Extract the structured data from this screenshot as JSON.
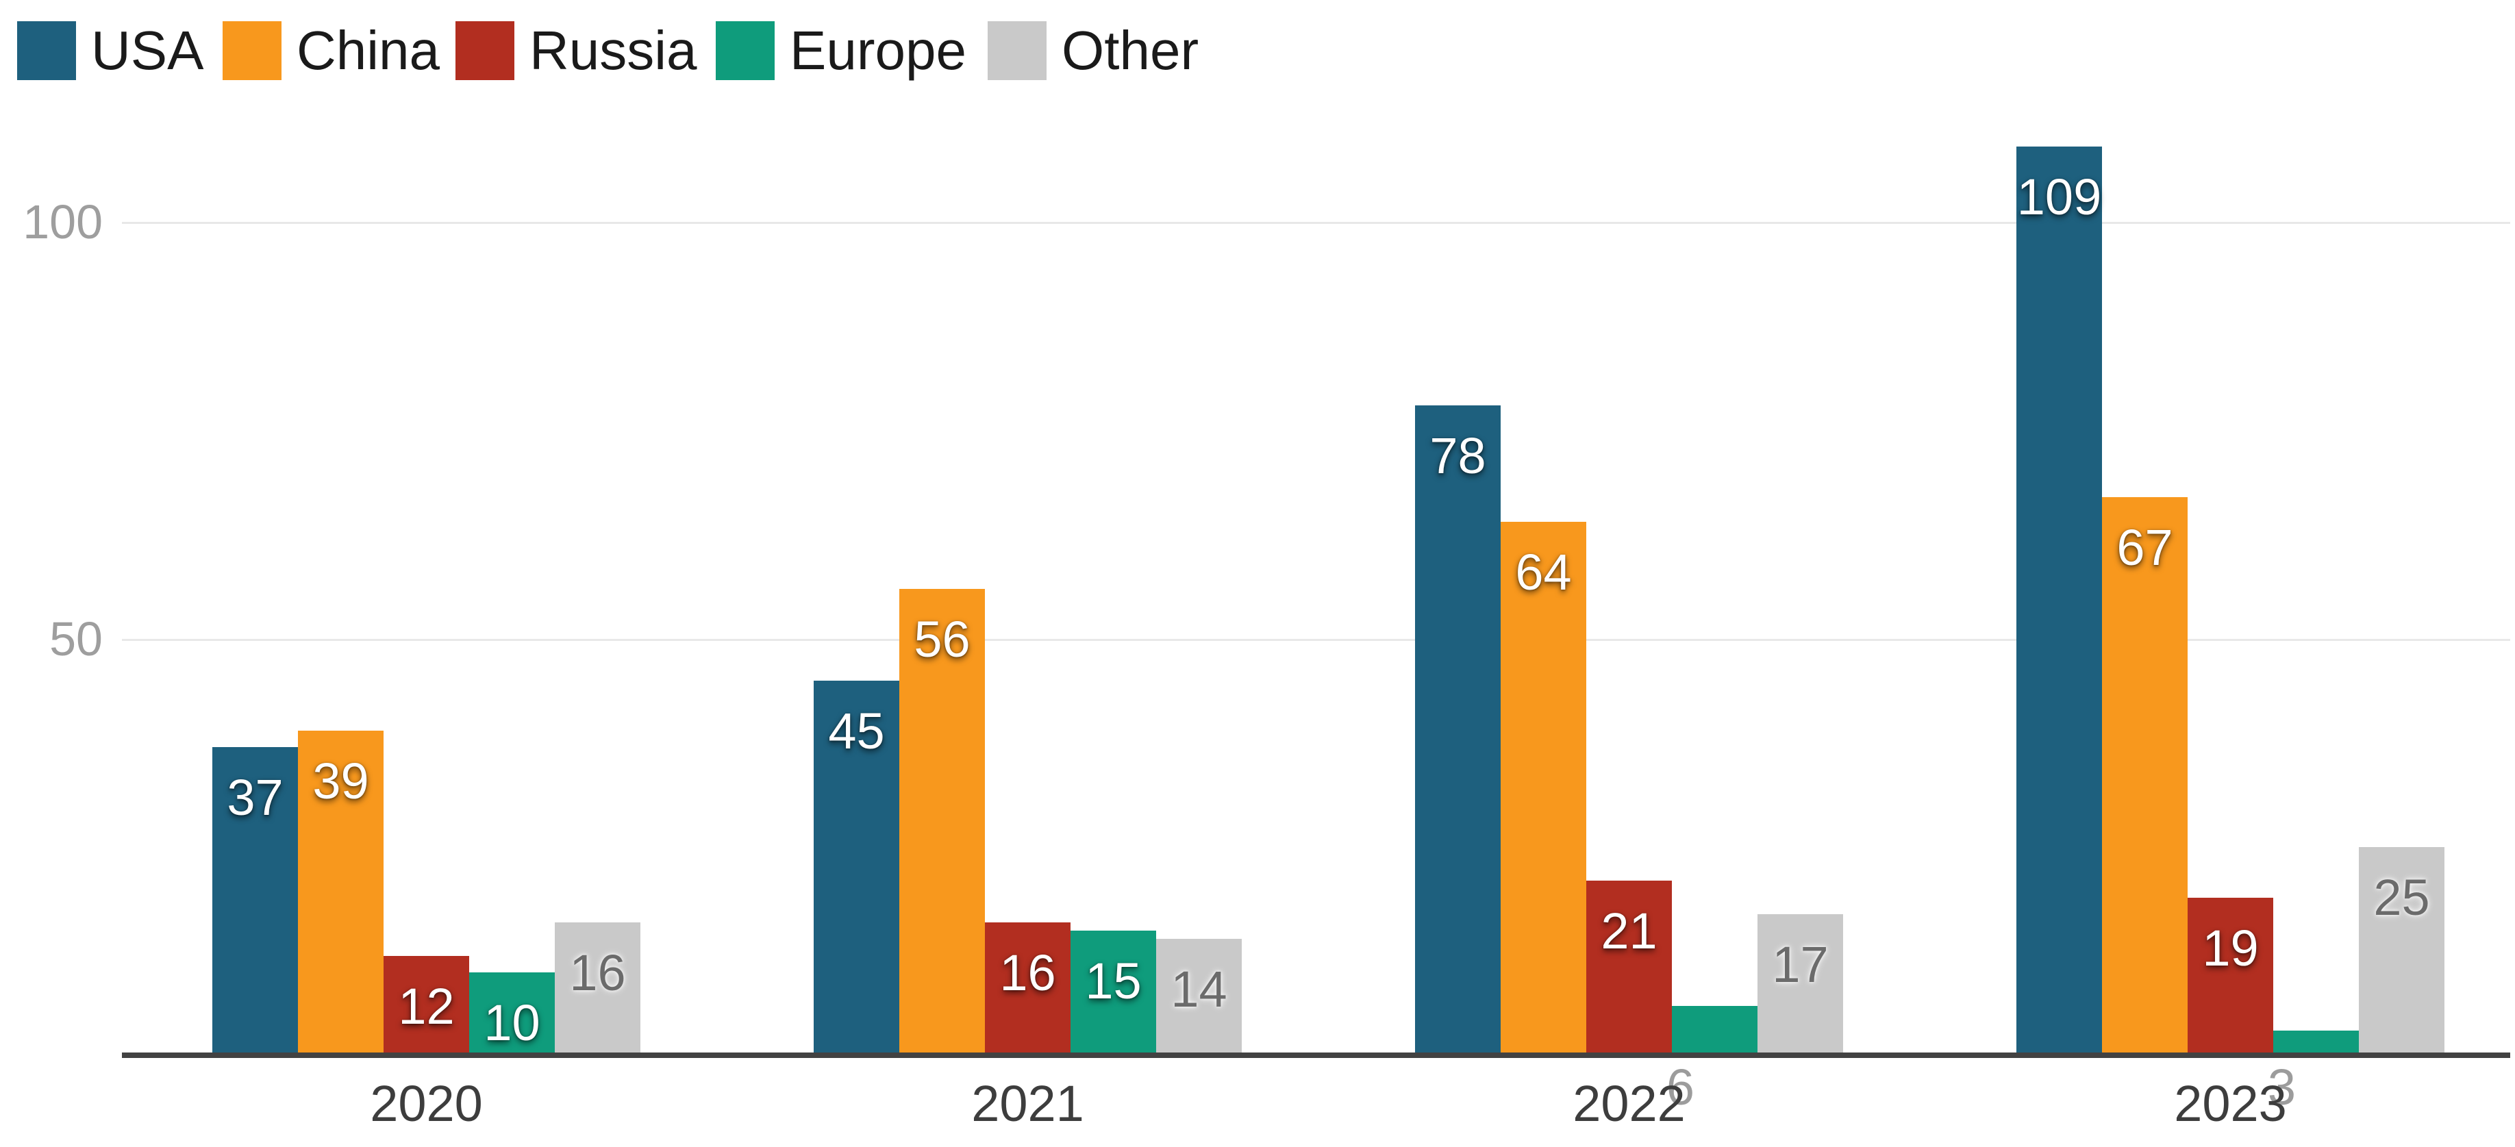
{
  "chart_data": {
    "type": "bar",
    "title": "",
    "categories": [
      "2020",
      "2021",
      "2022",
      "2023"
    ],
    "series": [
      {
        "name": "USA",
        "color": "#1e607e",
        "values": [
          37,
          45,
          78,
          109
        ]
      },
      {
        "name": "China",
        "color": "#f8981d",
        "values": [
          39,
          56,
          64,
          67
        ]
      },
      {
        "name": "Russia",
        "color": "#b22e20",
        "values": [
          12,
          16,
          21,
          19
        ]
      },
      {
        "name": "Europe",
        "color": "#0f9c7c",
        "values": [
          10,
          15,
          6,
          3
        ]
      },
      {
        "name": "Other",
        "color": "#c9c9c9",
        "values": [
          16,
          14,
          17,
          25
        ]
      }
    ],
    "xlabel": "",
    "ylabel": "",
    "ylim": [
      0,
      110
    ],
    "yticks": [
      {
        "value": 50,
        "label": "50"
      },
      {
        "value": 100,
        "label": "100"
      }
    ],
    "grid": true,
    "legend_position": "top-left",
    "value_labels": true
  },
  "colors": {
    "background": "#ffffff",
    "axis": "#424242",
    "gridline": "#e8e8e8",
    "ytick_label": "#9e9e9e",
    "category_label": "#3d3d3d",
    "legend_label": "#1a1a1a",
    "value_label_light": "#ffffff",
    "value_label_dark": "#6b6b6b",
    "value_label_outside": "#9c9c9c"
  }
}
